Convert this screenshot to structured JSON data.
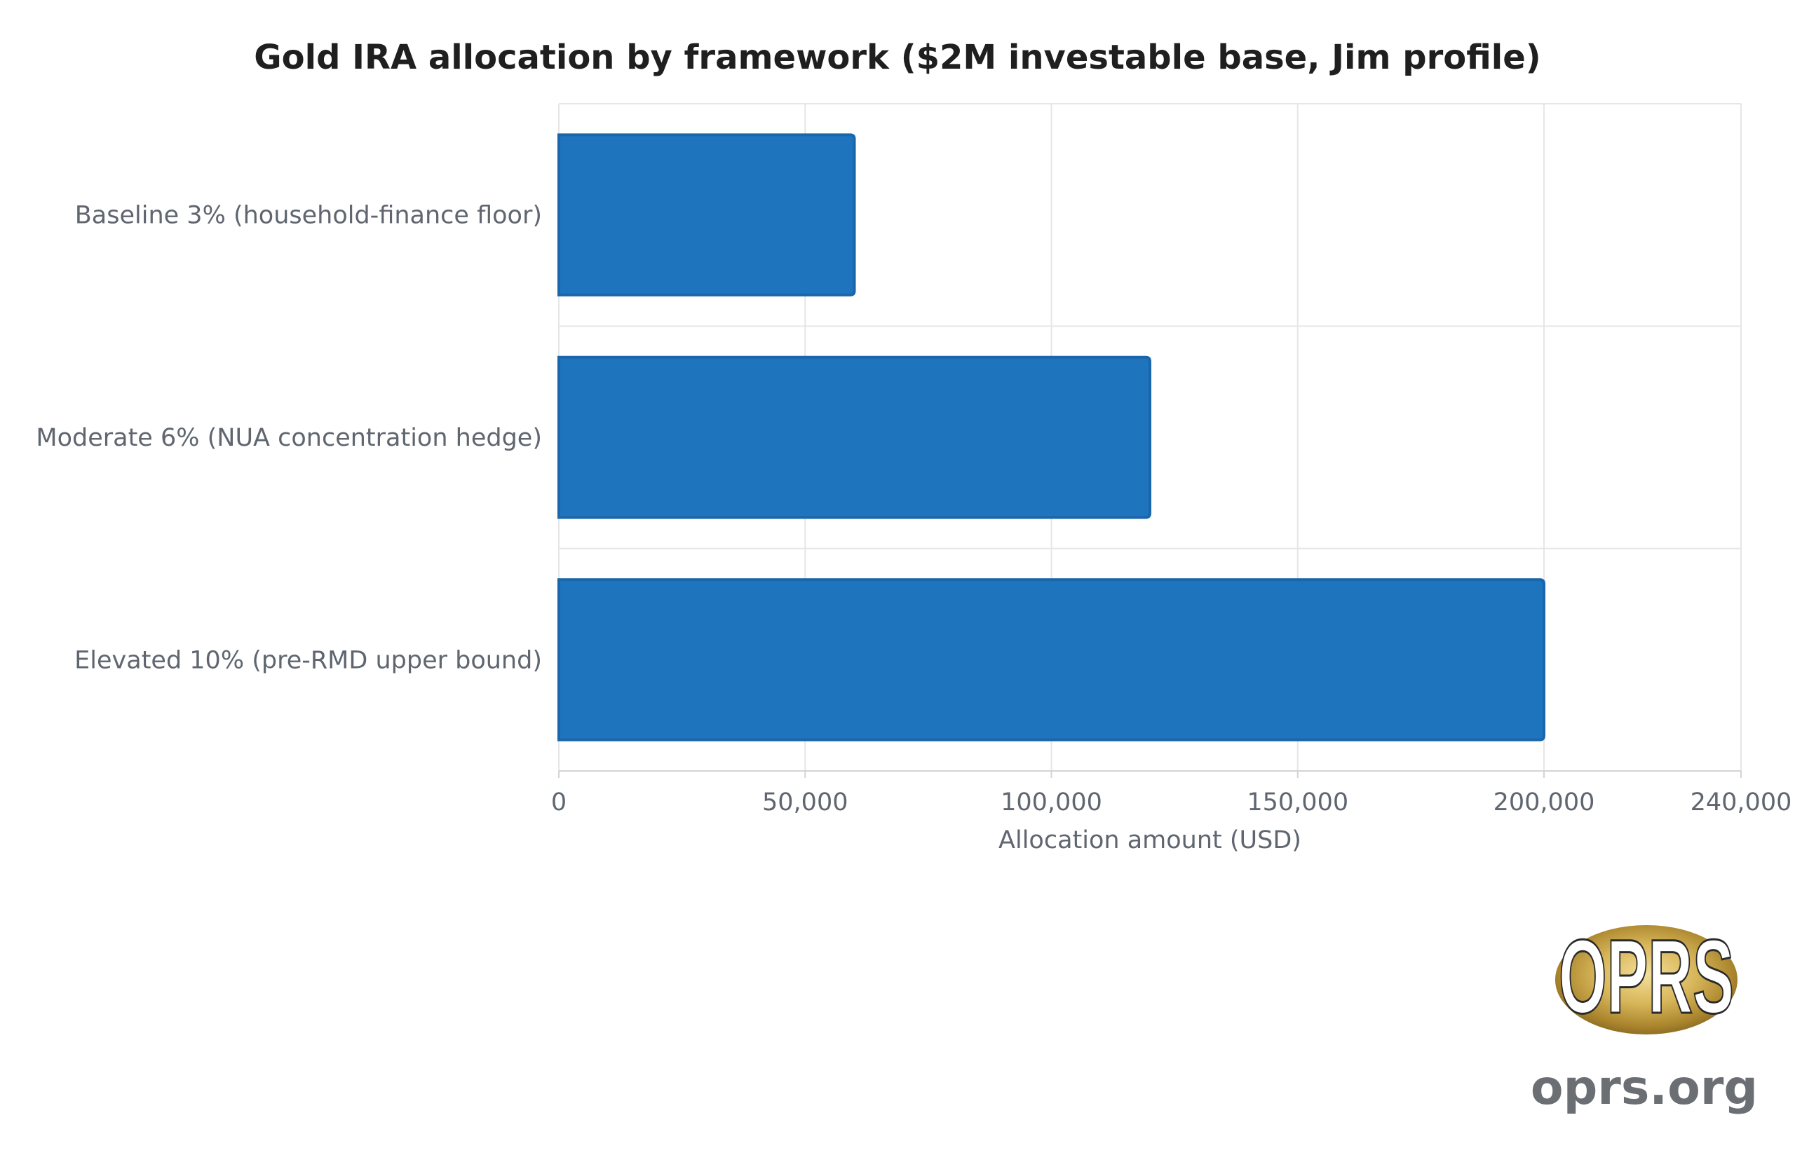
{
  "chart_data": {
    "type": "bar",
    "orientation": "horizontal",
    "title": "Gold IRA allocation by framework ($2M investable base, Jim profile)",
    "xlabel": "Allocation amount (USD)",
    "ylabel": "",
    "categories": [
      "Baseline 3% (household-finance floor)",
      "Moderate 6% (NUA concentration hedge)",
      "Elevated 10% (pre-RMD upper bound)"
    ],
    "values": [
      60000,
      120000,
      200000
    ],
    "xlim": [
      0,
      240000
    ],
    "ticks": [
      0,
      50000,
      100000,
      150000,
      200000,
      240000
    ],
    "tick_labels": [
      "0",
      "50,000",
      "100,000",
      "150,000",
      "200,000",
      "240,000"
    ],
    "grid": true,
    "bar_color": "#1f74be"
  },
  "branding": {
    "logo_text": "OPRS",
    "site": "oprs.org"
  }
}
